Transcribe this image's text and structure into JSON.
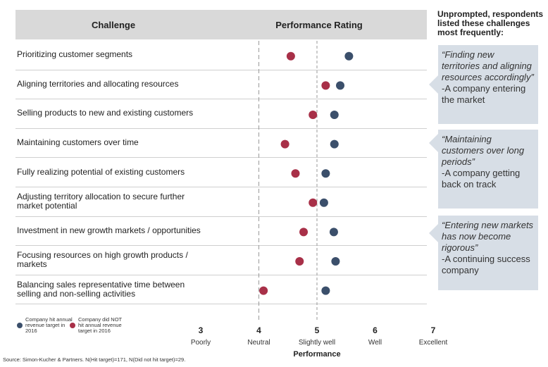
{
  "headers": {
    "challenge": "Challenge",
    "rating": "Performance Rating"
  },
  "side_title": "Unprompted, respondents listed these challenges most frequently:",
  "quotes": [
    {
      "quote": "“Finding new territories and aligning resources accordingly”",
      "attribution": "-A company entering the market"
    },
    {
      "quote": "“Maintaining customers over long periods”",
      "attribution": "-A company getting back on track"
    },
    {
      "quote": "“Entering new markets has now become rigorous”",
      "attribution": "-A continuing success company"
    }
  ],
  "legend": [
    {
      "label": "Company hit annual revenue target in 2016",
      "color": "#3b4f6b"
    },
    {
      "label": "Company did NOT hit annual revenue target in 2016",
      "color": "#a83048"
    }
  ],
  "source": "Source: Simon-Kucher & Partners. N(Hit target)=171, N(Did not hit target)=29.",
  "chart_data": {
    "type": "scatter",
    "title": "",
    "xlabel": "Performance",
    "xlim": [
      3,
      7
    ],
    "x_ticks": [
      3,
      4,
      5,
      6,
      7
    ],
    "x_tick_labels": [
      "Poorly",
      "Neutral",
      "Slightly well",
      "Well",
      "Excellent"
    ],
    "reference_lines": [
      4,
      5
    ],
    "categories": [
      "Prioritizing customer segments",
      "Aligning territories and allocating resources",
      "Selling products to new and existing customers",
      "Maintaining customers over time",
      "Fully realizing potential of existing customers",
      "Adjusting territory allocation to secure further market potential",
      "Investment in new growth markets / opportunities",
      "Focusing resources on high growth products / markets",
      "Balancing sales representative time between selling and non-selling activities"
    ],
    "series": [
      {
        "name": "Company hit annual revenue target in 2016",
        "color": "#3b4f6b",
        "values": [
          5.55,
          5.4,
          5.3,
          5.3,
          5.15,
          5.12,
          5.29,
          5.32,
          5.15
        ]
      },
      {
        "name": "Company did NOT hit annual revenue target in 2016",
        "color": "#a83048",
        "values": [
          4.55,
          5.15,
          4.93,
          4.45,
          4.63,
          4.93,
          4.77,
          4.7,
          4.08
        ]
      }
    ]
  }
}
